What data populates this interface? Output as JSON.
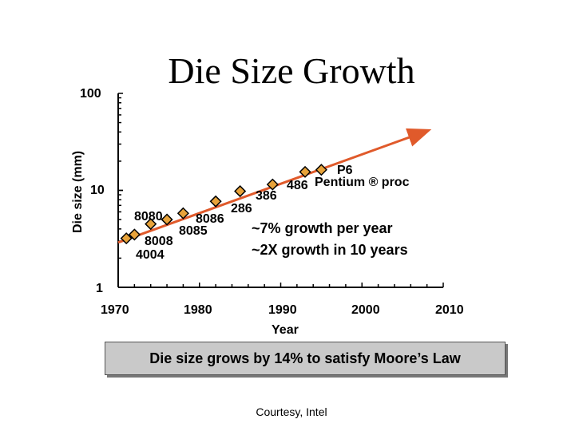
{
  "title": "Die Size Growth",
  "chart_data": {
    "type": "scatter",
    "ylabel": "Die size (mm)",
    "xlabel": "Year",
    "x_ticks": [
      "1970",
      "1980",
      "1990",
      "2000",
      "2010"
    ],
    "y_ticks": [
      "100",
      "10",
      "1"
    ],
    "xlim": [
      1970,
      2010
    ],
    "ylim": [
      1,
      100
    ],
    "y_scale": "log",
    "series": [
      {
        "points": [
          {
            "x": 1971,
            "y": 3.2
          },
          {
            "x": 1972,
            "y": 3.5
          },
          {
            "x": 1974,
            "y": 4.5
          },
          {
            "x": 1976,
            "y": 5.0
          },
          {
            "x": 1978,
            "y": 5.8
          },
          {
            "x": 1982,
            "y": 7.7
          },
          {
            "x": 1985,
            "y": 9.8
          },
          {
            "x": 1989,
            "y": 11.5
          },
          {
            "x": 1993,
            "y": 15.5
          },
          {
            "x": 1995,
            "y": 16.3
          }
        ]
      }
    ],
    "point_labels": [
      "8080",
      "8008",
      "4004",
      "8086",
      "8085",
      "286",
      "386",
      "486",
      "Pentium ® proc",
      "P6"
    ],
    "trend": {
      "from": {
        "x": 1970,
        "y": 2.9
      },
      "to": {
        "x": 2008,
        "y": 41
      }
    },
    "annotations": [
      "~7% growth per year",
      "~2X growth in 10 years"
    ],
    "marker_color": "#e8a33a",
    "trend_color": "#e05a2b"
  },
  "moore_note": "Die size grows by 14% to satisfy Moore’s Law",
  "courtesy": "Courtesy, Intel"
}
